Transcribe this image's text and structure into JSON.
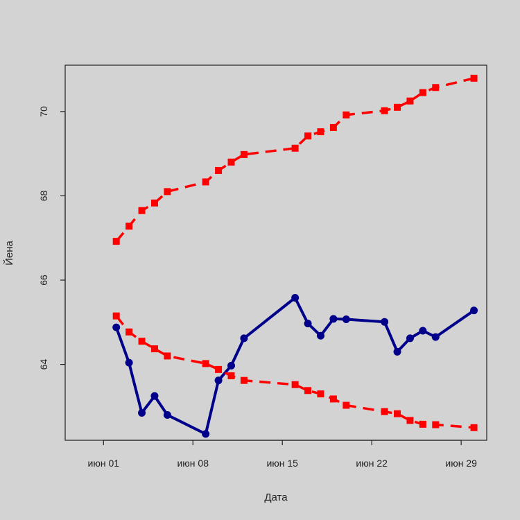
{
  "chart_data": {
    "type": "line",
    "title": "",
    "xlabel": "Дата",
    "ylabel": "Йена",
    "xlim": [
      "2023-05-29",
      "2023-07-01"
    ],
    "ylim": [
      62.2,
      71.1
    ],
    "x_ticks": [
      {
        "date": "2023-06-01",
        "label": "июн 01"
      },
      {
        "date": "2023-06-08",
        "label": "июн 08"
      },
      {
        "date": "2023-06-15",
        "label": "июн 15"
      },
      {
        "date": "2023-06-22",
        "label": "июн 22"
      },
      {
        "date": "2023-06-29",
        "label": "июн 29"
      }
    ],
    "y_ticks": [
      64,
      66,
      68,
      70
    ],
    "grid": false,
    "series": [
      {
        "color": "#00008b",
        "style": "solid",
        "marker": "circle",
        "x": [
          "2023-06-02",
          "2023-06-03",
          "2023-06-04",
          "2023-06-05",
          "2023-06-06",
          "2023-06-09",
          "2023-06-10",
          "2023-06-11",
          "2023-06-12",
          "2023-06-16",
          "2023-06-17",
          "2023-06-18",
          "2023-06-19",
          "2023-06-20",
          "2023-06-23",
          "2023-06-24",
          "2023-06-25",
          "2023-06-26",
          "2023-06-27",
          "2023-06-30"
        ],
        "y": [
          64.88,
          64.04,
          62.85,
          63.25,
          62.8,
          62.35,
          63.62,
          63.97,
          64.62,
          65.58,
          64.97,
          64.68,
          65.08,
          65.07,
          65.01,
          64.3,
          64.62,
          64.8,
          64.65,
          65.28
        ]
      },
      {
        "color": "#ff0000",
        "style": "dashed",
        "marker": "square",
        "x": [
          "2023-06-02",
          "2023-06-03",
          "2023-06-04",
          "2023-06-05",
          "2023-06-06",
          "2023-06-09",
          "2023-06-10",
          "2023-06-11",
          "2023-06-12",
          "2023-06-16",
          "2023-06-17",
          "2023-06-18",
          "2023-06-19",
          "2023-06-20",
          "2023-06-23",
          "2023-06-24",
          "2023-06-25",
          "2023-06-26",
          "2023-06-27",
          "2023-06-30"
        ],
        "y": [
          66.92,
          67.28,
          67.65,
          67.83,
          68.1,
          68.33,
          68.6,
          68.8,
          68.98,
          69.13,
          69.42,
          69.52,
          69.62,
          69.92,
          70.02,
          70.1,
          70.25,
          70.45,
          70.57,
          70.79
        ]
      },
      {
        "color": "#ff0000",
        "style": "dashed",
        "marker": "square",
        "x": [
          "2023-06-02",
          "2023-06-03",
          "2023-06-04",
          "2023-06-05",
          "2023-06-06",
          "2023-06-09",
          "2023-06-10",
          "2023-06-11",
          "2023-06-12",
          "2023-06-16",
          "2023-06-17",
          "2023-06-18",
          "2023-06-19",
          "2023-06-20",
          "2023-06-23",
          "2023-06-24",
          "2023-06-25",
          "2023-06-26",
          "2023-06-27",
          "2023-06-30"
        ],
        "y": [
          65.15,
          64.77,
          64.55,
          64.37,
          64.2,
          64.02,
          63.88,
          63.73,
          63.62,
          63.52,
          63.38,
          63.3,
          63.18,
          63.03,
          62.88,
          62.83,
          62.67,
          62.58,
          62.57,
          62.5
        ]
      }
    ]
  }
}
